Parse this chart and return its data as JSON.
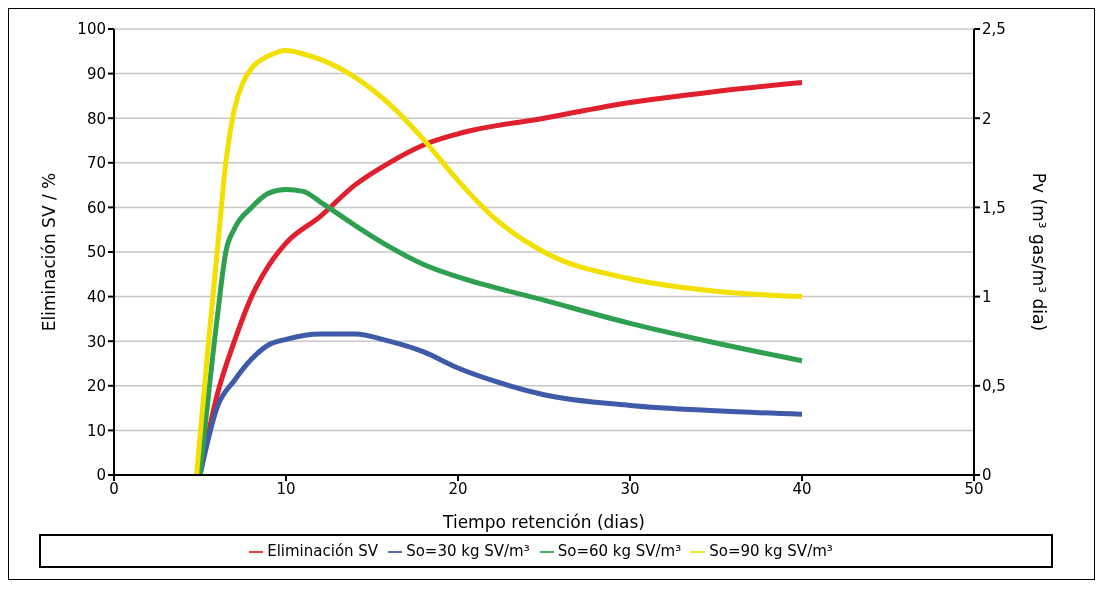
{
  "chart_data": {
    "type": "line",
    "xlabel": "Tiempo retención (dias)",
    "ylabel": "Eliminación SV / %",
    "y2label": "Pv (m³ gas/m³ dia)",
    "xlim": [
      0,
      50
    ],
    "xticks": [
      0,
      10,
      20,
      30,
      40,
      50
    ],
    "ylim": [
      0,
      100
    ],
    "yticks": [
      0,
      10,
      20,
      30,
      40,
      50,
      60,
      70,
      80,
      90,
      100
    ],
    "y2lim": [
      0,
      2.5
    ],
    "y2ticks": [
      0,
      {
        "value": 0.5,
        "label": "0,5"
      },
      1,
      {
        "value": 1.5,
        "label": "1,5"
      },
      2,
      {
        "value": 2.5,
        "label": "2,5"
      }
    ],
    "grid": "y",
    "legend": "bottom",
    "marker": "none",
    "line_style": "solid",
    "series": [
      {
        "name": "Eliminación SV",
        "color": "#e0202e",
        "x": [
          5,
          6,
          7,
          8,
          9,
          10,
          12,
          14,
          16,
          18,
          20,
          25,
          30,
          35,
          40
        ],
        "values": [
          0,
          18,
          30,
          40,
          47,
          52,
          58,
          65,
          70,
          74,
          76.5,
          80,
          83.5,
          86,
          88
        ]
      },
      {
        "name": "So=30 kg SV/m³",
        "color": "#3f5aa8",
        "axis": "y2",
        "x": [
          5,
          6,
          7,
          8,
          9,
          10,
          12,
          14,
          16,
          18,
          20,
          22,
          25,
          30,
          35,
          40
        ],
        "values": [
          0,
          0.38,
          0.53,
          0.65,
          0.73,
          0.76,
          0.79,
          0.79,
          0.75,
          0.69,
          0.6,
          0.53,
          0.45,
          0.39,
          0.36,
          0.34
        ]
      },
      {
        "name": "So=60 kg SV/m³",
        "color": "#2ea050",
        "axis": "y2",
        "x": [
          5,
          6,
          6.5,
          7,
          8,
          9,
          10,
          11,
          12,
          14,
          16,
          18,
          20,
          25,
          30,
          35,
          40
        ],
        "values": [
          0,
          0.88,
          1.25,
          1.38,
          1.5,
          1.58,
          1.6,
          1.59,
          1.53,
          1.4,
          1.28,
          1.18,
          1.11,
          0.98,
          0.85,
          0.74,
          0.64
        ]
      },
      {
        "name": "So=90 kg SV/m³",
        "color": "#f2e000",
        "axis": "y2",
        "x": [
          4.8,
          5.5,
          6,
          6.5,
          7,
          7.5,
          8,
          9,
          10,
          11,
          12,
          14,
          16,
          18,
          20,
          22,
          25,
          30,
          35,
          40
        ],
        "values": [
          0,
          0.75,
          1.25,
          1.75,
          2.05,
          2.2,
          2.28,
          2.35,
          2.38,
          2.36,
          2.33,
          2.23,
          2.08,
          1.88,
          1.65,
          1.45,
          1.25,
          1.1,
          1.03,
          1.0
        ]
      }
    ]
  }
}
